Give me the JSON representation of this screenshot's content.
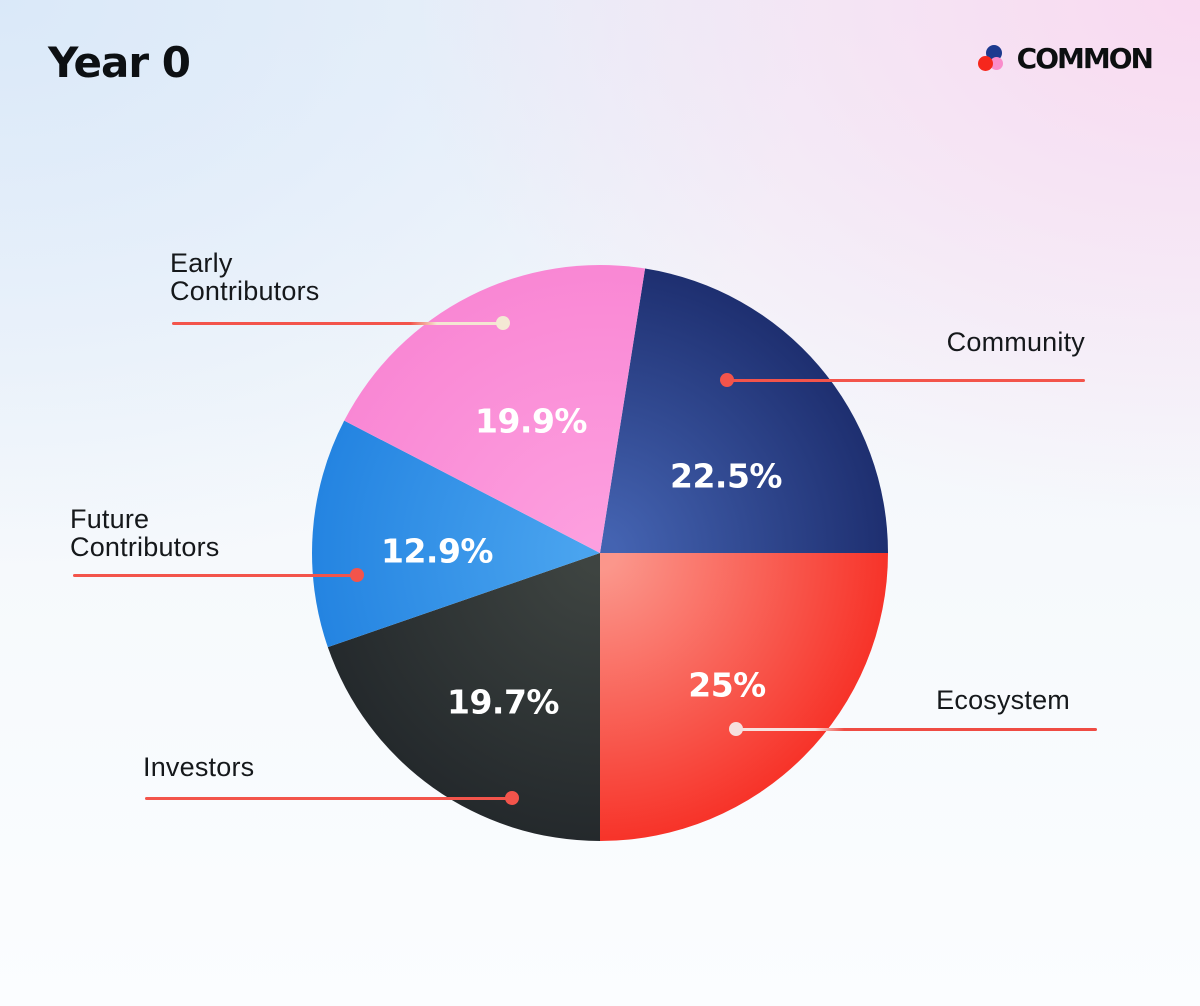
{
  "page": {
    "title": "Year 0"
  },
  "brand": {
    "name": "COMMON",
    "logo_colors": {
      "blue": "#1d3a8f",
      "red": "#f6271c",
      "pink": "#f98ccb"
    }
  },
  "chart_data": {
    "type": "pie",
    "title": "Year 0",
    "start_angle_deg": 9,
    "direction": "clockwise",
    "legend_position": "callout-labels",
    "value_label_color": "#ffffff",
    "slices": [
      {
        "label": "Community",
        "value": 22.5,
        "display": "22.5%",
        "color_inner": "#4463b1",
        "color_outer": "#1e2f70"
      },
      {
        "label": "Ecosystem",
        "value": 25.0,
        "display": "25%",
        "color_inner": "#fb968b",
        "color_outer": "#f73329"
      },
      {
        "label": "Investors",
        "value": 19.7,
        "display": "19.7%",
        "color_inner": "#3e4441",
        "color_outer": "#24292c"
      },
      {
        "label": "Future Contributors",
        "value": 12.9,
        "display": "12.9%",
        "color_inner": "#4aa4ef",
        "color_outer": "#2484e1"
      },
      {
        "label": "Early Contributors",
        "value": 19.9,
        "display": "19.9%",
        "color_inner": "#fd9fdf",
        "color_outer": "#f987d4"
      }
    ]
  },
  "callouts": {
    "community": {
      "lines": [
        "Community"
      ],
      "dot_color": "#f3544b",
      "line_color": "#f3544b"
    },
    "ecosystem": {
      "lines": [
        "Ecosystem"
      ],
      "dot_color": "#f6dfdd",
      "line_color_start": "#f7e3e0",
      "line_color_end": "#ef4b43"
    },
    "investors": {
      "lines": [
        "Investors"
      ],
      "dot_color": "#f3544b",
      "line_color": "#f3544b"
    },
    "future": {
      "lines": [
        "Future",
        "Contributors"
      ],
      "dot_color": "#f3544b",
      "line_color": "#f3544b"
    },
    "early": {
      "lines": [
        "Early",
        "Contributors"
      ],
      "dot_color": "#f4e9d4",
      "line_color_start": "#f3544b",
      "line_color_end": "#f4e6d2"
    }
  }
}
